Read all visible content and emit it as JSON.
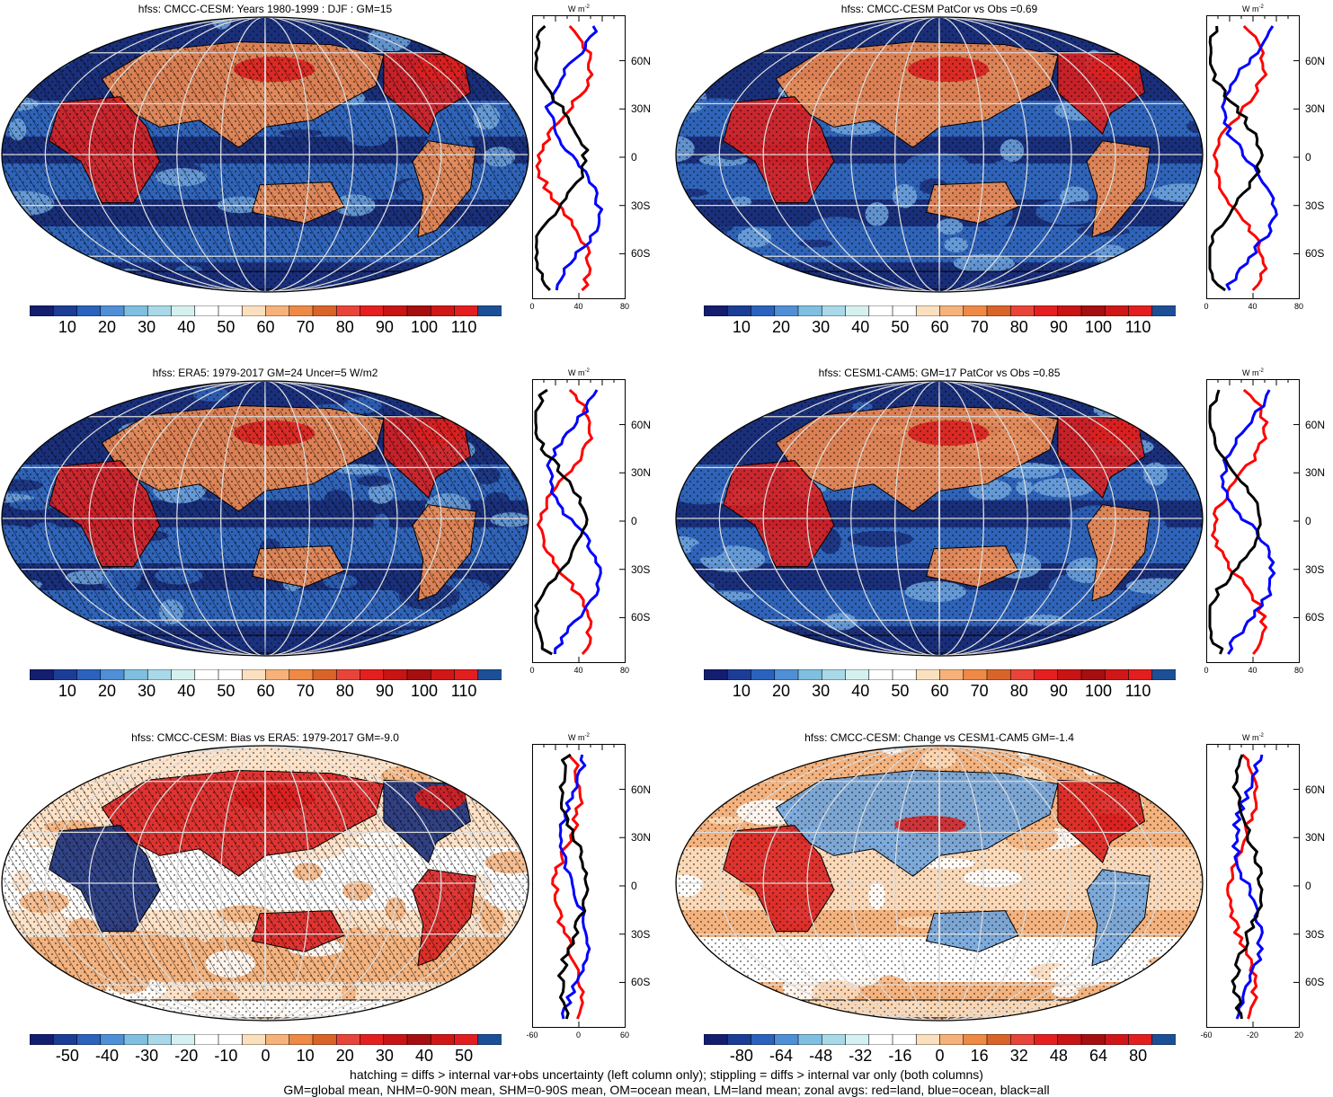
{
  "colors": {
    "ocean_deep": "#1a2f7a",
    "ocean_mid": "#2f63b8",
    "ocean_light": "#6fa3dc",
    "land_warm": "#d92020",
    "land_pale": "#f6c9a0",
    "zonal_land": "#ff0000",
    "zonal_ocean": "#0000ff",
    "zonal_all": "#000000"
  },
  "colorbar_mean": [
    "#141e6e",
    "#1b3d96",
    "#2a62be",
    "#4f8fd6",
    "#7fbfe0",
    "#a9d8e8",
    "#d6f0f0",
    "#ffffff",
    "#ffffff",
    "#fbe0c0",
    "#f6b27a",
    "#ee8a45",
    "#d9642a",
    "#e8453a",
    "#e51f1f",
    "#c81414",
    "#a50f0f",
    "#cf1717",
    "#e31e1e",
    "#1c4f96"
  ],
  "colorbar_div": [
    "#141e6e",
    "#1b3d96",
    "#2a62be",
    "#4f8fd6",
    "#7fbfe0",
    "#a9d8e8",
    "#d6f0f0",
    "#ffffff",
    "#ffffff",
    "#fbe0c0",
    "#f6b27a",
    "#ee8a45",
    "#d9642a",
    "#e8453a",
    "#e51f1f",
    "#c81414",
    "#a50f0f",
    "#cf1717",
    "#e31e1e",
    "#1c4f96"
  ],
  "panels": [
    {
      "title": "hfss: CMCC-CESM: Years 1980-1999 : DJF : GM=15",
      "units": "W m",
      "units_sup": "-2",
      "lat_labels": [
        "60N",
        "30N",
        "0",
        "30S",
        "60S"
      ],
      "x_ticks": [
        "0",
        "40",
        "80"
      ],
      "cbar_labels": [
        "10",
        "20",
        "30",
        "40",
        "50",
        "60",
        "70",
        "80",
        "90",
        "100",
        "110"
      ],
      "map_style": "mean",
      "hatch": true
    },
    {
      "title": "hfss: CMCC-CESM PatCor vs Obs =0.69",
      "units": "W m",
      "units_sup": "-2",
      "lat_labels": [
        "60N",
        "30N",
        "0",
        "30S",
        "60S"
      ],
      "x_ticks": [
        "0",
        "40",
        "80"
      ],
      "cbar_labels": [
        "10",
        "20",
        "30",
        "40",
        "50",
        "60",
        "70",
        "80",
        "90",
        "100",
        "110"
      ],
      "map_style": "mean",
      "hatch": false
    },
    {
      "title": "hfss: ERA5: 1979-2017 GM=24 Uncer=5 W/m2",
      "units": "W m",
      "units_sup": "-2",
      "lat_labels": [
        "60N",
        "30N",
        "0",
        "30S",
        "60S"
      ],
      "x_ticks": [
        "0",
        "40",
        "80"
      ],
      "cbar_labels": [
        "10",
        "20",
        "30",
        "40",
        "50",
        "60",
        "70",
        "80",
        "90",
        "100",
        "110"
      ],
      "map_style": "mean",
      "hatch": true
    },
    {
      "title": "hfss: CESM1-CAM5: GM=17 PatCor vs Obs =0.85",
      "units": "W m",
      "units_sup": "-2",
      "lat_labels": [
        "60N",
        "30N",
        "0",
        "30S",
        "60S"
      ],
      "x_ticks": [
        "0",
        "40",
        "80"
      ],
      "cbar_labels": [
        "10",
        "20",
        "30",
        "40",
        "50",
        "60",
        "70",
        "80",
        "90",
        "100",
        "110"
      ],
      "map_style": "mean",
      "hatch": false
    },
    {
      "title": "hfss: CMCC-CESM: Bias vs ERA5: 1979-2017 GM=-9.0",
      "units": "W m",
      "units_sup": "-2",
      "lat_labels": [
        "60N",
        "30N",
        "0",
        "30S",
        "60S"
      ],
      "x_ticks": [
        "-60",
        "0",
        "60"
      ],
      "cbar_labels": [
        "-50",
        "-40",
        "-30",
        "-20",
        "-10",
        "0",
        "10",
        "20",
        "30",
        "40",
        "50"
      ],
      "map_style": "diff",
      "hatch": true
    },
    {
      "title": "hfss: CMCC-CESM: Change vs CESM1-CAM5 GM=-1.4",
      "units": "W m",
      "units_sup": "-2",
      "lat_labels": [
        "60N",
        "30N",
        "0",
        "30S",
        "60S"
      ],
      "x_ticks": [
        "-60",
        "-20",
        "20"
      ],
      "cbar_labels": [
        "-80",
        "-64",
        "-48",
        "-32",
        "-16",
        "0",
        "16",
        "32",
        "48",
        "64",
        "80"
      ],
      "map_style": "change",
      "hatch": false
    }
  ],
  "footer": {
    "line1": "hatching = diffs > internal var+obs uncertainty (left column only); stippling = diffs > internal var only (both columns)",
    "line2": "GM=global mean, NHM=0-90N mean, SHM=0-90S mean, OM=ocean mean, LM=land mean; zonal avgs: red=land, blue=ocean, black=all"
  }
}
